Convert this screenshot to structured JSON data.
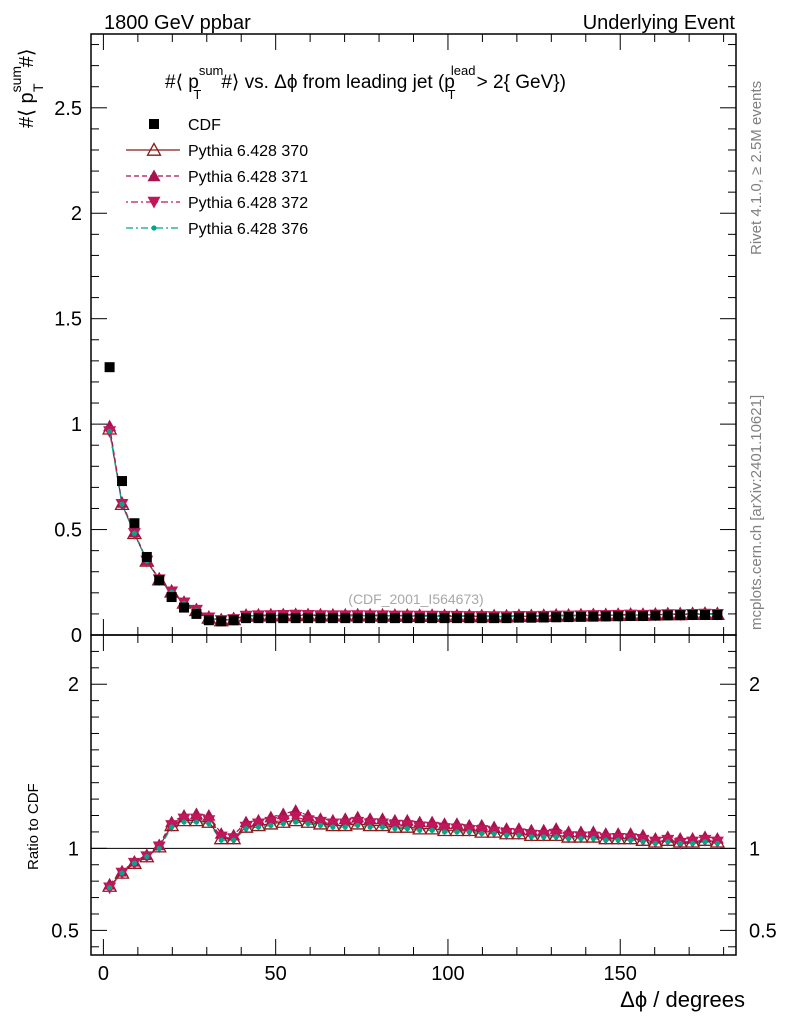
{
  "chart_data": {
    "type": "scatter",
    "header_left": "1800 GeV ppbar",
    "header_right": "Underlying Event",
    "side_text_top": "Rivet 4.1.0, ≥ 2.5M events",
    "side_text_bottom": "mcplots.cern.ch [arXiv:2401.10621]",
    "title_parts": {
      "t1": "#⟨ p",
      "sup1": "sum",
      "sub1": "T",
      "t2": "#⟩ vs. Δϕ from leading jet  (p",
      "sup2": "lead",
      "sub2": "T",
      "t3": " > 2{ GeV})"
    },
    "ylabel_parts": {
      "pre": "#⟨ p",
      "sup": "sum",
      "sub": "T",
      "post": "#⟩"
    },
    "xlabel": "Δϕ / degrees",
    "ratio_ylabel": "Ratio to CDF",
    "watermark": "(CDF_2001_I564673)",
    "xlim": [
      -3.6,
      183.6
    ],
    "ylim": [
      0,
      2.85
    ],
    "ratio_ylim": [
      0.35,
      2.3
    ],
    "x_ticks": [
      "0",
      "50",
      "100",
      "150"
    ],
    "y_ticks": [
      "0",
      "0.5",
      "1",
      "1.5",
      "2",
      "2.5"
    ],
    "ratio_ticks": [
      "0.5",
      "1",
      "2"
    ],
    "x": [
      1.8,
      5.4,
      9,
      12.6,
      16.2,
      19.8,
      23.4,
      27,
      30.6,
      34.2,
      37.8,
      41.4,
      45,
      48.6,
      52.2,
      55.8,
      59.4,
      63,
      66.6,
      70.2,
      73.8,
      77.4,
      81,
      84.6,
      88.2,
      91.8,
      95.4,
      99,
      102.6,
      106.2,
      109.8,
      113.4,
      117,
      120.6,
      124.2,
      127.8,
      131.4,
      135,
      138.6,
      142.2,
      145.8,
      149.4,
      153,
      156.6,
      160.2,
      163.8,
      167.4,
      171,
      174.6,
      178.2
    ],
    "series": [
      {
        "name": "CDF",
        "color": "#000000",
        "values": [
          1.27,
          0.73,
          0.53,
          0.37,
          0.26,
          0.18,
          0.13,
          0.1,
          0.07,
          0.065,
          0.07,
          0.08,
          0.08,
          0.08,
          0.08,
          0.08,
          0.08,
          0.08,
          0.08,
          0.08,
          0.08,
          0.08,
          0.08,
          0.08,
          0.08,
          0.08,
          0.08,
          0.08,
          0.08,
          0.08,
          0.08,
          0.08,
          0.08,
          0.082,
          0.082,
          0.083,
          0.084,
          0.085,
          0.086,
          0.087,
          0.088,
          0.089,
          0.09,
          0.09,
          0.092,
          0.093,
          0.094,
          0.095,
          0.095,
          0.095
        ]
      },
      {
        "name": "Pythia 6.428 370",
        "color": "#8b1a1a",
        "ratio": [
          0.77,
          0.85,
          0.91,
          0.95,
          1.01,
          1.14,
          1.17,
          1.17,
          1.16,
          1.06,
          1.06,
          1.13,
          1.14,
          1.15,
          1.16,
          1.17,
          1.16,
          1.15,
          1.14,
          1.14,
          1.15,
          1.14,
          1.14,
          1.13,
          1.13,
          1.12,
          1.12,
          1.11,
          1.11,
          1.11,
          1.1,
          1.1,
          1.09,
          1.09,
          1.08,
          1.08,
          1.08,
          1.07,
          1.07,
          1.07,
          1.06,
          1.06,
          1.06,
          1.05,
          1.04,
          1.05,
          1.04,
          1.04,
          1.05,
          1.04
        ]
      },
      {
        "name": "Pythia 6.428 371",
        "color": "#a8124e",
        "ratio": [
          0.78,
          0.86,
          0.92,
          0.96,
          1.02,
          1.16,
          1.2,
          1.21,
          1.2,
          1.09,
          1.08,
          1.16,
          1.17,
          1.19,
          1.21,
          1.23,
          1.2,
          1.18,
          1.17,
          1.18,
          1.19,
          1.18,
          1.18,
          1.17,
          1.17,
          1.16,
          1.16,
          1.15,
          1.15,
          1.14,
          1.14,
          1.13,
          1.12,
          1.12,
          1.11,
          1.11,
          1.12,
          1.1,
          1.1,
          1.1,
          1.09,
          1.09,
          1.09,
          1.08,
          1.06,
          1.07,
          1.06,
          1.06,
          1.07,
          1.06
        ]
      },
      {
        "name": "Pythia 6.428 372",
        "color": "#c0175a",
        "ratio": [
          0.76,
          0.85,
          0.91,
          0.95,
          1.01,
          1.14,
          1.18,
          1.18,
          1.17,
          1.07,
          1.06,
          1.13,
          1.15,
          1.16,
          1.17,
          1.19,
          1.17,
          1.16,
          1.15,
          1.15,
          1.16,
          1.15,
          1.15,
          1.14,
          1.14,
          1.13,
          1.13,
          1.12,
          1.12,
          1.11,
          1.11,
          1.1,
          1.09,
          1.09,
          1.08,
          1.08,
          1.08,
          1.07,
          1.07,
          1.07,
          1.06,
          1.06,
          1.06,
          1.05,
          1.04,
          1.05,
          1.03,
          1.04,
          1.05,
          1.04
        ]
      },
      {
        "name": "Pythia 6.428 376",
        "color": "#00a88a",
        "ratio": [
          0.76,
          0.85,
          0.91,
          0.95,
          1.0,
          1.13,
          1.16,
          1.16,
          1.15,
          1.05,
          1.05,
          1.12,
          1.13,
          1.14,
          1.15,
          1.16,
          1.15,
          1.14,
          1.13,
          1.13,
          1.14,
          1.13,
          1.13,
          1.12,
          1.12,
          1.11,
          1.11,
          1.1,
          1.1,
          1.1,
          1.09,
          1.09,
          1.08,
          1.08,
          1.07,
          1.07,
          1.07,
          1.06,
          1.06,
          1.06,
          1.05,
          1.05,
          1.05,
          1.04,
          1.03,
          1.04,
          1.03,
          1.03,
          1.04,
          1.03
        ]
      }
    ]
  }
}
